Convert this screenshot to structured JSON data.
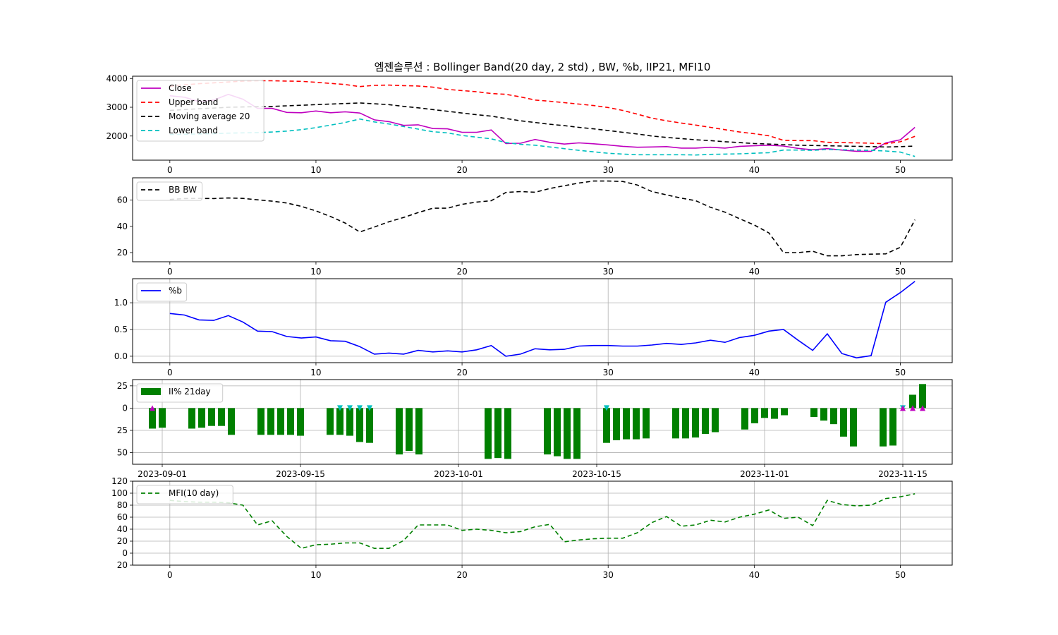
{
  "title": "엠젠솔루션 : Bollinger Band(20 day, 2 std) , BW, %b, IIP21, MFI10",
  "chart_data": [
    {
      "id": "price",
      "type": "line",
      "x": [
        0,
        1,
        2,
        3,
        4,
        5,
        6,
        7,
        8,
        9,
        10,
        11,
        12,
        13,
        14,
        15,
        16,
        17,
        18,
        19,
        20,
        21,
        22,
        23,
        24,
        25,
        26,
        27,
        28,
        29,
        30,
        31,
        32,
        33,
        34,
        35,
        36,
        37,
        38,
        39,
        40,
        41,
        42,
        43,
        44,
        45,
        46,
        47,
        48,
        49,
        50,
        51
      ],
      "xlim": [
        -2.55,
        53.55
      ],
      "ylim": [
        1160,
        4080
      ],
      "yticks": [
        2000,
        3000,
        4000
      ],
      "xticks": [
        0,
        10,
        20,
        30,
        40,
        50
      ],
      "grid": false,
      "legend": "top-left",
      "series": [
        {
          "name": "Close",
          "color": "#bf00bf",
          "dash": "",
          "values": [
            3400,
            3350,
            3200,
            3250,
            3450,
            3280,
            2960,
            2960,
            2820,
            2810,
            2870,
            2810,
            2840,
            2800,
            2560,
            2500,
            2370,
            2390,
            2260,
            2250,
            2130,
            2130,
            2210,
            1740,
            1750,
            1880,
            1780,
            1720,
            1760,
            1730,
            1690,
            1640,
            1610,
            1620,
            1630,
            1580,
            1580,
            1610,
            1580,
            1640,
            1660,
            1680,
            1650,
            1570,
            1520,
            1560,
            1510,
            1470,
            1470,
            1760,
            1870,
            2300
          ]
        },
        {
          "name": "Upper band",
          "color": "#ff0000",
          "dash": "6,4",
          "values": [
            3730,
            3780,
            3820,
            3850,
            3880,
            3910,
            3920,
            3920,
            3910,
            3900,
            3870,
            3830,
            3790,
            3720,
            3760,
            3770,
            3750,
            3740,
            3700,
            3620,
            3580,
            3540,
            3480,
            3450,
            3360,
            3250,
            3210,
            3160,
            3110,
            3060,
            2990,
            2890,
            2760,
            2620,
            2530,
            2450,
            2380,
            2300,
            2220,
            2140,
            2080,
            2010,
            1850,
            1840,
            1840,
            1780,
            1770,
            1760,
            1750,
            1730,
            1800,
            1990
          ]
        },
        {
          "name": "Moving average 20",
          "color": "#000000",
          "dash": "6,4",
          "values": [
            2890,
            2920,
            2950,
            2970,
            3000,
            3010,
            3020,
            3030,
            3050,
            3070,
            3090,
            3110,
            3130,
            3150,
            3120,
            3090,
            3030,
            2980,
            2920,
            2860,
            2800,
            2740,
            2690,
            2610,
            2530,
            2470,
            2410,
            2360,
            2300,
            2250,
            2190,
            2130,
            2070,
            2000,
            1950,
            1910,
            1870,
            1840,
            1800,
            1770,
            1740,
            1720,
            1700,
            1680,
            1670,
            1660,
            1650,
            1640,
            1630,
            1620,
            1630,
            1650
          ]
        },
        {
          "name": "Lower band",
          "color": "#00bfbf",
          "dash": "6,4",
          "values": [
            2050,
            2060,
            2070,
            2080,
            2100,
            2110,
            2120,
            2140,
            2170,
            2220,
            2290,
            2380,
            2470,
            2590,
            2490,
            2420,
            2330,
            2240,
            2150,
            2110,
            2020,
            1960,
            1900,
            1770,
            1710,
            1680,
            1620,
            1560,
            1500,
            1450,
            1400,
            1370,
            1350,
            1350,
            1350,
            1350,
            1340,
            1360,
            1370,
            1380,
            1400,
            1420,
            1510,
            1510,
            1500,
            1530,
            1520,
            1510,
            1500,
            1480,
            1440,
            1290
          ]
        }
      ]
    },
    {
      "id": "bw",
      "type": "line",
      "x": [
        0,
        1,
        2,
        3,
        4,
        5,
        6,
        7,
        8,
        9,
        10,
        11,
        12,
        13,
        14,
        15,
        16,
        17,
        18,
        19,
        20,
        21,
        22,
        23,
        24,
        25,
        26,
        27,
        28,
        29,
        30,
        31,
        32,
        33,
        34,
        35,
        36,
        37,
        38,
        39,
        40,
        41,
        42,
        43,
        44,
        45,
        46,
        47,
        48,
        49,
        50,
        51
      ],
      "xlim": [
        -2.55,
        53.55
      ],
      "ylim": [
        13,
        77
      ],
      "yticks": [
        20,
        40,
        60
      ],
      "xticks": [
        0,
        10,
        20,
        30,
        40,
        50
      ],
      "grid": false,
      "legend": "top-left",
      "series": [
        {
          "name": "BB BW",
          "color": "#000000",
          "dash": "6,4",
          "values": [
            60.5,
            61.2,
            61.3,
            61.2,
            61.6,
            61.3,
            60.2,
            59.2,
            57.8,
            55.2,
            51.8,
            47.5,
            42.5,
            35.7,
            39.5,
            43.5,
            46.8,
            50.5,
            53.8,
            53.8,
            56.8,
            58.5,
            59.5,
            65.8,
            66.5,
            66.0,
            68.8,
            71.0,
            73.0,
            74.5,
            74.5,
            74.2,
            71.5,
            66.5,
            64.0,
            61.5,
            59.5,
            54.5,
            50.8,
            45.8,
            41.0,
            35.0,
            20.0,
            20.0,
            21.0,
            17.5,
            17.5,
            18.5,
            18.8,
            19.0,
            24.0,
            45.0
          ]
        }
      ]
    },
    {
      "id": "pctb",
      "type": "line",
      "x": [
        0,
        1,
        2,
        3,
        4,
        5,
        6,
        7,
        8,
        9,
        10,
        11,
        12,
        13,
        14,
        15,
        16,
        17,
        18,
        19,
        20,
        21,
        22,
        23,
        24,
        25,
        26,
        27,
        28,
        29,
        30,
        31,
        32,
        33,
        34,
        35,
        36,
        37,
        38,
        39,
        40,
        41,
        42,
        43,
        44,
        45,
        46,
        47,
        48,
        49,
        50,
        51
      ],
      "xlim": [
        -2.55,
        53.55
      ],
      "ylim": [
        -0.12,
        1.45
      ],
      "yticks": [
        0.0,
        0.5,
        1.0
      ],
      "ytick_labels": [
        "0.0",
        "0.5",
        "1.0"
      ],
      "xticks": [
        0,
        10,
        20,
        30,
        40,
        50
      ],
      "grid": true,
      "legend": "top-left",
      "series": [
        {
          "name": "%b",
          "color": "#0000ff",
          "dash": "",
          "values": [
            0.8,
            0.77,
            0.68,
            0.67,
            0.76,
            0.64,
            0.47,
            0.46,
            0.37,
            0.34,
            0.36,
            0.29,
            0.28,
            0.18,
            0.04,
            0.06,
            0.04,
            0.11,
            0.08,
            0.1,
            0.08,
            0.12,
            0.2,
            0.0,
            0.04,
            0.14,
            0.12,
            0.13,
            0.19,
            0.2,
            0.2,
            0.19,
            0.19,
            0.21,
            0.24,
            0.22,
            0.25,
            0.3,
            0.26,
            0.35,
            0.39,
            0.47,
            0.5,
            0.3,
            0.11,
            0.42,
            0.05,
            -0.03,
            0.01,
            1.01,
            1.19,
            1.4
          ]
        }
      ]
    },
    {
      "id": "iip",
      "type": "bar",
      "dates": [
        "2023-08-31",
        "2023-09-01",
        "2023-09-04",
        "2023-09-05",
        "2023-09-06",
        "2023-09-07",
        "2023-09-08",
        "2023-09-11",
        "2023-09-12",
        "2023-09-13",
        "2023-09-14",
        "2023-09-15",
        "2023-09-18",
        "2023-09-19",
        "2023-09-20",
        "2023-09-21",
        "2023-09-22",
        "2023-09-25",
        "2023-09-26",
        "2023-09-27",
        "2023-10-04",
        "2023-10-05",
        "2023-10-06",
        "2023-10-10",
        "2023-10-11",
        "2023-10-12",
        "2023-10-13",
        "2023-10-16",
        "2023-10-17",
        "2023-10-18",
        "2023-10-19",
        "2023-10-20",
        "2023-10-23",
        "2023-10-24",
        "2023-10-25",
        "2023-10-26",
        "2023-10-27",
        "2023-10-30",
        "2023-10-31",
        "2023-11-01",
        "2023-11-02",
        "2023-11-03",
        "2023-11-06",
        "2023-11-07",
        "2023-11-08",
        "2023-11-09",
        "2023-11-10",
        "2023-11-13",
        "2023-11-14",
        "2023-11-15",
        "2023-11-16",
        "2023-11-17"
      ],
      "values": [
        -23,
        -22,
        -23,
        -22,
        -20,
        -20,
        -30,
        -30,
        -30,
        -30,
        -30,
        -31,
        -30,
        -30,
        -31,
        -38,
        -39,
        -52,
        -48,
        -52,
        -57,
        -56,
        -57,
        -52,
        -54,
        -57,
        -57,
        -39,
        -36,
        -35,
        -35,
        -34,
        -34,
        -34,
        -33,
        -29,
        -27,
        -24,
        -17,
        -11,
        -12,
        -8,
        -10,
        -14,
        -18,
        -32,
        -43,
        -43,
        -42,
        0,
        15,
        27
      ],
      "legend_label": "II% 21day",
      "bar_color": "#008000",
      "xlim_dates": [
        "2023-08-29",
        "2023-11-20"
      ],
      "ylim": [
        -63,
        32
      ],
      "yticks": [
        -50,
        -25,
        0,
        25
      ],
      "ytick_labels": [
        "\u001f50",
        "\u001f25",
        "0",
        "25"
      ],
      "xticks": [
        "2023-09-01",
        "2023-09-15",
        "2023-10-01",
        "2023-10-15",
        "2023-11-01",
        "2023-11-15"
      ],
      "grid": true,
      "legend": "top-left",
      "sell_markers": [
        "2023-09-19",
        "2023-09-20",
        "2023-09-21",
        "2023-09-22",
        "2023-10-16",
        "2023-11-15"
      ],
      "sell_marker_color": "#00bfbf",
      "buy_markers": [
        "2023-08-31",
        "2023-11-15",
        "2023-11-16",
        "2023-11-17"
      ],
      "buy_marker_color": "#bf00bf"
    },
    {
      "id": "mfi",
      "type": "line",
      "x": [
        0,
        1,
        2,
        3,
        4,
        5,
        6,
        7,
        8,
        9,
        10,
        11,
        12,
        13,
        14,
        15,
        16,
        17,
        18,
        19,
        20,
        21,
        22,
        23,
        24,
        25,
        26,
        27,
        28,
        29,
        30,
        31,
        32,
        33,
        34,
        35,
        36,
        37,
        38,
        39,
        40,
        41,
        42,
        43,
        44,
        45,
        46,
        47,
        48,
        49,
        50,
        51
      ],
      "xlim": [
        -2.55,
        53.55
      ],
      "ylim": [
        -20,
        120
      ],
      "yticks": [
        -20,
        0,
        20,
        40,
        60,
        80,
        100,
        120
      ],
      "ytick_labels": [
        "\u001f20",
        "0",
        "20",
        "40",
        "60",
        "80",
        "100",
        "120"
      ],
      "xticks": [
        0,
        10,
        20,
        30,
        40,
        50
      ],
      "grid": true,
      "legend": "top-left",
      "series": [
        {
          "name": "MFI(10 day)",
          "color": "#008000",
          "dash": "6,4",
          "values": [
            88,
            86,
            85,
            85,
            84,
            80,
            47,
            54,
            28,
            8,
            14,
            15,
            17,
            17,
            8,
            8,
            21,
            47,
            47,
            47,
            38,
            40,
            38,
            34,
            36,
            44,
            48,
            19,
            22,
            24,
            25,
            25,
            34,
            51,
            61,
            45,
            47,
            55,
            52,
            60,
            65,
            72,
            58,
            60,
            46,
            88,
            81,
            79,
            80,
            91,
            94,
            99
          ]
        }
      ]
    }
  ]
}
